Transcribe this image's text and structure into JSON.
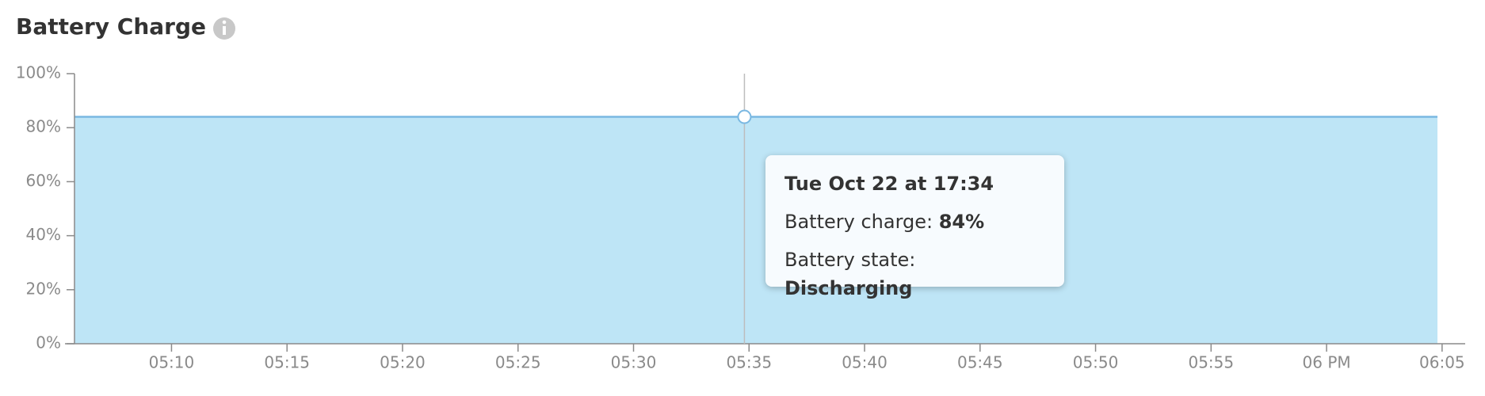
{
  "chart_data": {
    "type": "area",
    "title": "Battery Charge",
    "x": [
      5.8,
      34.8,
      64.8
    ],
    "series": [
      {
        "name": "Battery charge",
        "color": "#7ab8e2",
        "fill": "#bee5f6",
        "values": [
          84,
          84,
          84
        ]
      }
    ],
    "xlim": [
      5.8,
      66
    ],
    "ylim": [
      0,
      100
    ],
    "xticks": [
      {
        "value": 10,
        "label": "05:10"
      },
      {
        "value": 15,
        "label": "05:15"
      },
      {
        "value": 20,
        "label": "05:20"
      },
      {
        "value": 25,
        "label": "05:25"
      },
      {
        "value": 30,
        "label": "05:30"
      },
      {
        "value": 35,
        "label": "05:35"
      },
      {
        "value": 40,
        "label": "05:40"
      },
      {
        "value": 45,
        "label": "05:45"
      },
      {
        "value": 50,
        "label": "05:50"
      },
      {
        "value": 55,
        "label": "05:55"
      },
      {
        "value": 60,
        "label": "06 PM"
      },
      {
        "value": 65,
        "label": "06:05"
      }
    ],
    "yticks": [
      {
        "value": 0,
        "label": "0%"
      },
      {
        "value": 20,
        "label": "20%"
      },
      {
        "value": 40,
        "label": "40%"
      },
      {
        "value": 60,
        "label": "60%"
      },
      {
        "value": 80,
        "label": "80%"
      },
      {
        "value": 100,
        "label": "100%"
      }
    ],
    "tooltip": {
      "title": "Tue Oct 22 at 17:34",
      "charge_label": "Battery charge: ",
      "charge_value": "84%",
      "state_label": "Battery state: ",
      "state_value": "Discharging"
    }
  }
}
